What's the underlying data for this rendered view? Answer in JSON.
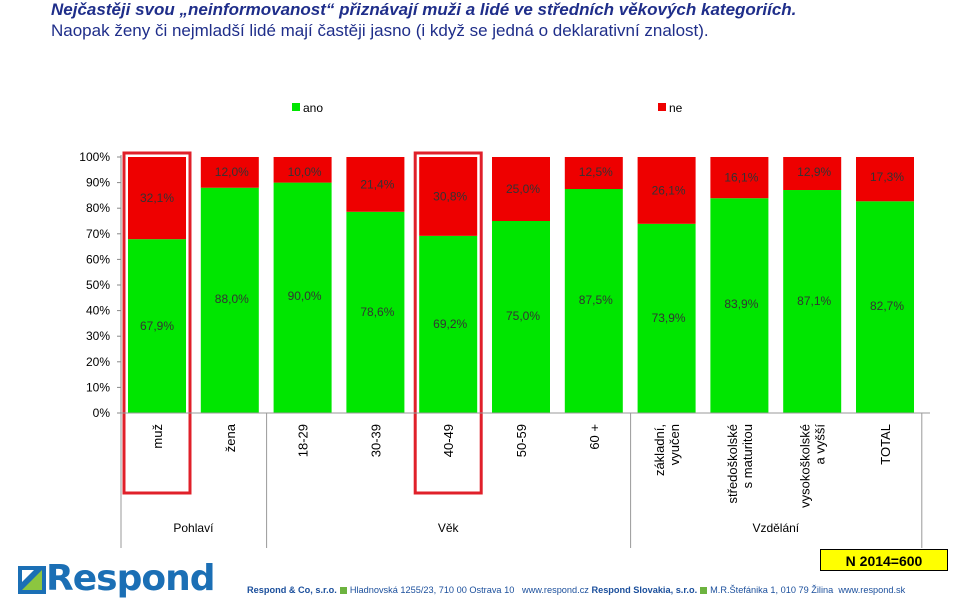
{
  "header": {
    "line1": "Nejčastěji svou „neinformovanost“ přiznávají muži a lidé ve středních věkových kategoriích.",
    "line2": "Naopak ženy či nejmladší lidé mají častěji jasno (i když se jedná o deklarativní znalost)."
  },
  "chart_data": {
    "type": "bar",
    "stacked": true,
    "categories": [
      "muž",
      "žena",
      "18-29",
      "30-39",
      "40-49",
      "50-59",
      "60 +",
      "základní, vyučen",
      "středoškolské s maturitou",
      "vysokoškolské a vyšší",
      "TOTAL"
    ],
    "series": [
      {
        "name": "ano",
        "color": "#00e600",
        "values": [
          67.9,
          88.0,
          90.0,
          78.6,
          69.2,
          75.0,
          87.5,
          73.9,
          83.9,
          87.1,
          82.7
        ]
      },
      {
        "name": "ne",
        "color": "#ee0000",
        "values": [
          32.1,
          12.0,
          10.0,
          21.4,
          30.8,
          25.0,
          12.5,
          26.1,
          16.1,
          12.9,
          17.3
        ]
      }
    ],
    "labels_ano": [
      "67,9%",
      "88,0%",
      "90,0%",
      "78,6%",
      "69,2%",
      "75,0%",
      "87,5%",
      "73,9%",
      "83,9%",
      "87,1%",
      "82,7%"
    ],
    "labels_ne": [
      "32,1%",
      "12,0%",
      "10,0%",
      "21,4%",
      "30,8%",
      "25,0%",
      "12,5%",
      "26,1%",
      "16,1%",
      "12,9%",
      "17,3%"
    ],
    "category_labels": [
      "muž",
      "žena",
      "18-29",
      "30-39",
      "40-49",
      "50-59",
      "60 +",
      [
        "základní,",
        "vyučen"
      ],
      [
        "středoškolské",
        "s maturitou"
      ],
      [
        "vysokoškolské",
        "a vyšší"
      ],
      "TOTAL"
    ],
    "yticks": [
      "0%",
      "10%",
      "20%",
      "30%",
      "40%",
      "50%",
      "60%",
      "70%",
      "80%",
      "90%",
      "100%"
    ],
    "ylim": [
      0,
      100
    ],
    "groups": [
      {
        "label": "Pohlaví",
        "from": 0,
        "to": 1
      },
      {
        "label": "Věk",
        "from": 2,
        "to": 6
      },
      {
        "label": "Vzdělání",
        "from": 7,
        "to": 10
      }
    ],
    "highlighted": [
      0,
      4
    ],
    "legend_position": "top",
    "grid": false
  },
  "footer": {
    "sample": "N 2014=600",
    "logo": "Respond",
    "company_cz": "Respond & Co, s.r.o.",
    "address_cz": "Hladnovská 1255/23, 710 00  Ostrava 10",
    "web_cz": "www.respond.cz",
    "company_sk": "Respond Slovakia, s.r.o.",
    "address_sk": "M.R.Štefánika 1, 010 79  Žilina",
    "web_sk": "www.respond.sk"
  }
}
